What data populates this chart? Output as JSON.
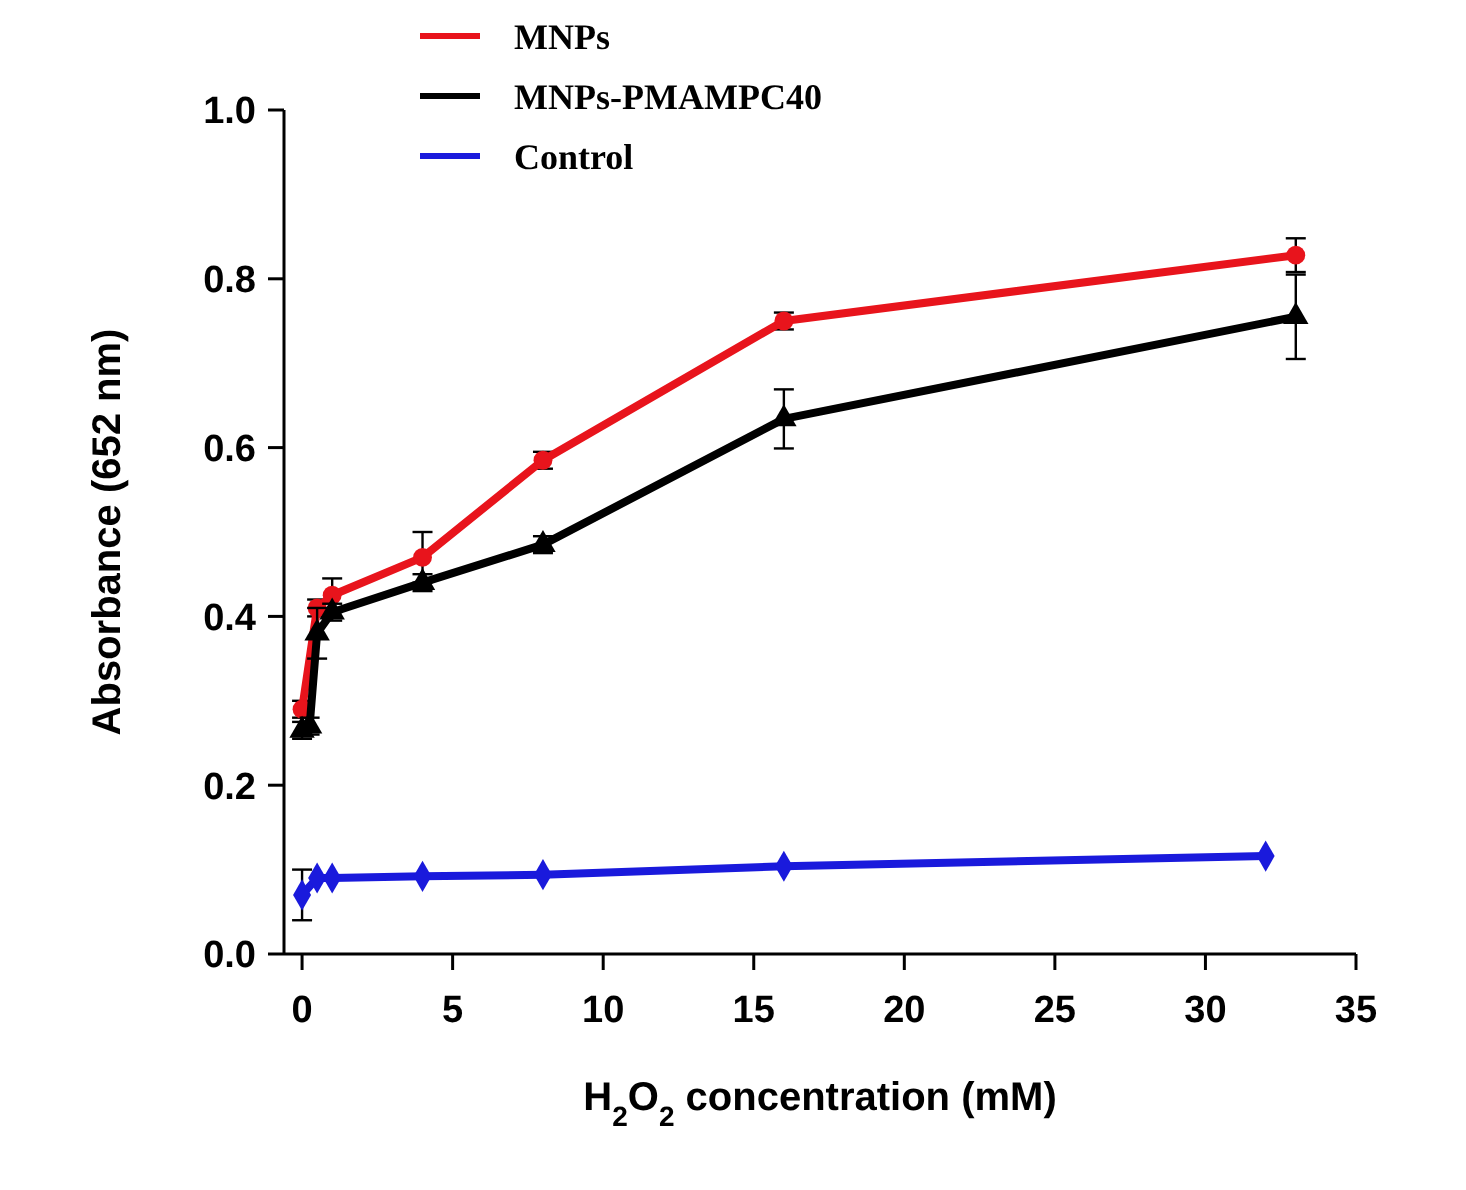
{
  "chart_data": {
    "type": "line",
    "xlabel": "H$_{2}$O$_{2}$ concentration  (mM)",
    "ylabel": "Absorbance  (652 nm)",
    "xlim": [
      -0.6,
      35
    ],
    "xticks": [
      0,
      5,
      10,
      15,
      20,
      25,
      30,
      35
    ],
    "ylim": [
      0,
      1.0
    ],
    "yticks": [
      {
        "value": 0,
        "label": "0.0"
      },
      0.2,
      0.4,
      0.6,
      0.8,
      {
        "value": 1,
        "label": "1.0"
      }
    ],
    "grid": false,
    "legend": "top",
    "series": [
      {
        "name": "MNPs",
        "color": "#e8141c",
        "marker": "circle",
        "x": [
          0,
          0.5,
          1,
          4,
          8,
          16,
          33
        ],
        "values": [
          0.29,
          0.41,
          0.425,
          0.47,
          0.585,
          0.75,
          0.828
        ],
        "errors": [
          0.01,
          0.01,
          0.02,
          0.03,
          0.01,
          0.01,
          0.02
        ]
      },
      {
        "name": "MNPs-PMAMPC40",
        "color": "#000000",
        "marker": "triangle",
        "x": [
          0,
          0.25,
          0.5,
          1,
          4,
          8,
          16,
          33
        ],
        "values": [
          0.265,
          0.27,
          0.38,
          0.405,
          0.44,
          0.485,
          0.634,
          0.755
        ],
        "errors": [
          0.01,
          0.01,
          0.03,
          0.01,
          0.01,
          0.01,
          0.035,
          0.05
        ]
      },
      {
        "name": "Control",
        "color": "#1a1adc",
        "marker": "diamond",
        "x": [
          0,
          0.5,
          1,
          4,
          8,
          16,
          32
        ],
        "values": [
          0.07,
          0.09,
          0.09,
          0.092,
          0.094,
          0.104,
          0.116
        ],
        "errors": [
          0.03,
          null,
          null,
          null,
          null,
          null,
          null
        ]
      }
    ]
  }
}
